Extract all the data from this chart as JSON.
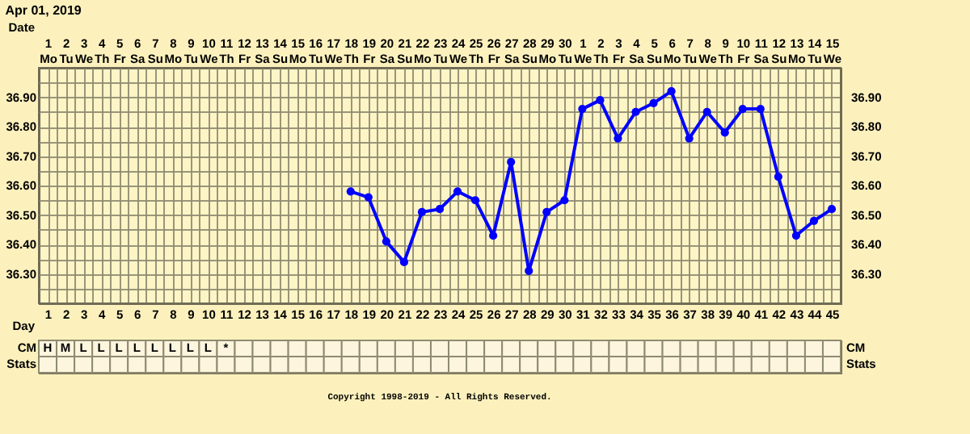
{
  "chart_data": [
    {
      "type": "line",
      "title": "Apr 01, 2019",
      "x2label": "Date",
      "xlabel": "Day",
      "x": [
        18,
        19,
        20,
        21,
        22,
        23,
        24,
        25,
        26,
        27,
        28,
        29,
        30,
        31,
        32,
        33,
        34,
        35,
        36,
        37,
        38,
        39,
        40,
        41,
        42,
        43,
        44,
        45
      ],
      "series": [
        {
          "color": "#0000ff",
          "values": [
            36.58,
            36.56,
            36.41,
            36.34,
            36.51,
            36.52,
            36.58,
            36.55,
            36.43,
            36.68,
            36.31,
            36.51,
            36.55,
            36.86,
            36.89,
            36.76,
            36.85,
            36.88,
            36.92,
            36.76,
            36.85,
            36.78,
            36.86,
            36.86,
            36.63,
            36.43,
            36.48,
            36.52
          ]
        }
      ],
      "marker": "circle",
      "line_style": "solid",
      "grid": true,
      "xlim": [
        0.5,
        45.5
      ],
      "xticks": [
        1,
        2,
        3,
        4,
        5,
        6,
        7,
        8,
        9,
        10,
        11,
        12,
        13,
        14,
        15,
        16,
        17,
        18,
        19,
        20,
        21,
        22,
        23,
        24,
        25,
        26,
        27,
        28,
        29,
        30,
        31,
        32,
        33,
        34,
        35,
        36,
        37,
        38,
        39,
        40,
        41,
        42,
        43,
        44,
        45,
        {
          "value": 1.5,
          "label": null
        },
        {
          "value": 2.5,
          "label": null
        },
        {
          "value": 3.5,
          "label": null
        },
        {
          "value": 4.5,
          "label": null
        },
        {
          "value": 5.5,
          "label": null
        },
        {
          "value": 6.5,
          "label": null
        },
        {
          "value": 7.5,
          "label": null
        },
        {
          "value": 8.5,
          "label": null
        },
        {
          "value": 9.5,
          "label": null
        },
        {
          "value": 10.5,
          "label": null
        },
        {
          "value": 11.5,
          "label": null
        },
        {
          "value": 12.5,
          "label": null
        },
        {
          "value": 13.5,
          "label": null
        },
        {
          "value": 14.5,
          "label": null
        },
        {
          "value": 15.5,
          "label": null
        },
        {
          "value": 16.5,
          "label": null
        },
        {
          "value": 17.5,
          "label": null
        },
        {
          "value": 18.5,
          "label": null
        },
        {
          "value": 19.5,
          "label": null
        },
        {
          "value": 20.5,
          "label": null
        },
        {
          "value": 21.5,
          "label": null
        },
        {
          "value": 22.5,
          "label": null
        },
        {
          "value": 23.5,
          "label": null
        },
        {
          "value": 24.5,
          "label": null
        },
        {
          "value": 25.5,
          "label": null
        },
        {
          "value": 26.5,
          "label": null
        },
        {
          "value": 27.5,
          "label": null
        },
        {
          "value": 28.5,
          "label": null
        },
        {
          "value": 29.5,
          "label": null
        },
        {
          "value": 30.5,
          "label": null
        },
        {
          "value": 31.5,
          "label": null
        },
        {
          "value": 32.5,
          "label": null
        },
        {
          "value": 33.5,
          "label": null
        },
        {
          "value": 34.5,
          "label": null
        },
        {
          "value": 35.5,
          "label": null
        },
        {
          "value": 36.5,
          "label": null
        },
        {
          "value": 37.5,
          "label": null
        },
        {
          "value": 38.5,
          "label": null
        },
        {
          "value": 39.5,
          "label": null
        },
        {
          "value": 40.5,
          "label": null
        },
        {
          "value": 41.5,
          "label": null
        },
        {
          "value": 42.5,
          "label": null
        },
        {
          "value": 43.5,
          "label": null
        },
        {
          "value": 44.5,
          "label": null
        }
      ],
      "x2lim": [
        "2019-03-31T12:00",
        "2019-05-15T12:00"
      ],
      "x2ticks": [
        {
          "value": "2019-04-01",
          "label": "1\nMo"
        },
        {
          "value": "2019-04-02",
          "label": "2\nTu"
        },
        {
          "value": "2019-04-03",
          "label": "3\nWe"
        },
        {
          "value": "2019-04-04",
          "label": "4\nTh"
        },
        {
          "value": "2019-04-05",
          "label": "5\nFr"
        },
        {
          "value": "2019-04-06",
          "label": "6\nSa"
        },
        {
          "value": "2019-04-07",
          "label": "7\nSu"
        },
        {
          "value": "2019-04-08",
          "label": "8\nMo"
        },
        {
          "value": "2019-04-09",
          "label": "9\nTu"
        },
        {
          "value": "2019-04-10",
          "label": "10\nWe"
        },
        {
          "value": "2019-04-11",
          "label": "11\nTh"
        },
        {
          "value": "2019-04-12",
          "label": "12\nFr"
        },
        {
          "value": "2019-04-13",
          "label": "13\nSa"
        },
        {
          "value": "2019-04-14",
          "label": "14\nSu"
        },
        {
          "value": "2019-04-15",
          "label": "15\nMo"
        },
        {
          "value": "2019-04-16",
          "label": "16\nTu"
        },
        {
          "value": "2019-04-17",
          "label": "17\nWe"
        },
        {
          "value": "2019-04-18",
          "label": "18\nTh"
        },
        {
          "value": "2019-04-19",
          "label": "19\nFr"
        },
        {
          "value": "2019-04-20",
          "label": "20\nSa"
        },
        {
          "value": "2019-04-21",
          "label": "21\nSu"
        },
        {
          "value": "2019-04-22",
          "label": "22\nMo"
        },
        {
          "value": "2019-04-23",
          "label": "23\nTu"
        },
        {
          "value": "2019-04-24",
          "label": "24\nWe"
        },
        {
          "value": "2019-04-25",
          "label": "25\nTh"
        },
        {
          "value": "2019-04-26",
          "label": "26\nFr"
        },
        {
          "value": "2019-04-27",
          "label": "27\nSa"
        },
        {
          "value": "2019-04-28",
          "label": "28\nSu"
        },
        {
          "value": "2019-04-29",
          "label": "29\nMo"
        },
        {
          "value": "2019-04-30",
          "label": "30\nTu"
        },
        {
          "value": "2019-05-01",
          "label": "1\nWe"
        },
        {
          "value": "2019-05-02",
          "label": "2\nTh"
        },
        {
          "value": "2019-05-03",
          "label": "3\nFr"
        },
        {
          "value": "2019-05-04",
          "label": "4\nSa"
        },
        {
          "value": "2019-05-05",
          "label": "5\nSu"
        },
        {
          "value": "2019-05-06",
          "label": "6\nMo"
        },
        {
          "value": "2019-05-07",
          "label": "7\nTu"
        },
        {
          "value": "2019-05-08",
          "label": "8\nWe"
        },
        {
          "value": "2019-05-09",
          "label": "9\nTh"
        },
        {
          "value": "2019-05-10",
          "label": "10\nFr"
        },
        {
          "value": "2019-05-11",
          "label": "11\nSa"
        },
        {
          "value": "2019-05-12",
          "label": "12\nSu"
        },
        {
          "value": "2019-05-13",
          "label": "13\nMo"
        },
        {
          "value": "2019-05-14",
          "label": "14\nTu"
        },
        {
          "value": "2019-05-15",
          "label": "15\nWe"
        }
      ],
      "ylim": [
        36.2,
        37.0
      ],
      "yticks": [
        {
          "value": 36.3,
          "label": "36.30"
        },
        {
          "value": 36.4,
          "label": "36.40"
        },
        {
          "value": 36.5,
          "label": "36.50"
        },
        {
          "value": 36.6,
          "label": "36.60"
        },
        {
          "value": 36.7,
          "label": "36.70"
        },
        {
          "value": 36.8,
          "label": "36.80"
        },
        {
          "value": 36.9,
          "label": "36.90"
        },
        {
          "value": 36.25,
          "label": null
        },
        {
          "value": 36.35,
          "label": null
        },
        {
          "value": 36.45,
          "label": null
        },
        {
          "value": 36.55,
          "label": null
        },
        {
          "value": 36.65,
          "label": null
        },
        {
          "value": 36.75,
          "label": null
        },
        {
          "value": 36.85,
          "label": null
        },
        {
          "value": 36.95,
          "label": null
        }
      ],
      "y2lim": [
        36.2,
        37.0
      ],
      "y2ticks": [
        {
          "value": 36.3,
          "label": "36.30"
        },
        {
          "value": 36.4,
          "label": "36.40"
        },
        {
          "value": 36.5,
          "label": "36.50"
        },
        {
          "value": 36.6,
          "label": "36.60"
        },
        {
          "value": 36.7,
          "label": "36.70"
        },
        {
          "value": 36.8,
          "label": "36.80"
        },
        {
          "value": 36.9,
          "label": "36.90"
        }
      ]
    },
    {
      "type": "heatmap",
      "tick_labels": "y",
      "annotations": [
        "Copyright 1998-2019 - All Rights Reserved."
      ],
      "categories": [
        null,
        null,
        null,
        null,
        null,
        null,
        null,
        null,
        null,
        null,
        null,
        null,
        null,
        null,
        null,
        null,
        null,
        null,
        null,
        null,
        null,
        null,
        null,
        null,
        null,
        null,
        null,
        null,
        null,
        null,
        null,
        null,
        null,
        null,
        null,
        null,
        null,
        null,
        null,
        null,
        null,
        null,
        null,
        null,
        null
      ],
      "y_categories": [
        "CM",
        "Stats"
      ],
      "y2_categories": [
        "CM",
        "Stats"
      ],
      "cells": [
        [
          null,
          null,
          null,
          null,
          null,
          null,
          null,
          null,
          null,
          null,
          null,
          null,
          null,
          null,
          null,
          null,
          null,
          null,
          null,
          null,
          null,
          null,
          null,
          null,
          null,
          null,
          null,
          null,
          null,
          null,
          null,
          null,
          null,
          null,
          null,
          null,
          null,
          null,
          null,
          null,
          null,
          null,
          null,
          null,
          null
        ],
        [
          null,
          null,
          null,
          null,
          null,
          null,
          null,
          null,
          null,
          null,
          null,
          null,
          null,
          null,
          null,
          null,
          null,
          null,
          null,
          null,
          null,
          null,
          null,
          null,
          null,
          null,
          null,
          null,
          null,
          null,
          null,
          null,
          null,
          null,
          null,
          null,
          null,
          null,
          null,
          null,
          null,
          null,
          null,
          null,
          null
        ]
      ],
      "cell_labels": [
        [
          "H",
          "M",
          "L",
          "L",
          "L",
          "L",
          "L",
          "L",
          "L",
          "L",
          "*",
          null,
          null,
          null,
          null,
          null,
          null,
          null,
          null,
          null,
          null,
          null,
          null,
          null,
          null,
          null,
          null,
          null,
          null,
          null,
          null,
          null,
          null,
          null,
          null,
          null,
          null,
          null,
          null,
          null,
          null,
          null,
          null,
          null,
          null
        ],
        [
          null,
          null,
          null,
          null,
          null,
          null,
          null,
          null,
          null,
          null,
          null,
          null,
          null,
          null,
          null,
          null,
          null,
          null,
          null,
          null,
          null,
          null,
          null,
          null,
          null,
          null,
          null,
          null,
          null,
          null,
          null,
          null,
          null,
          null,
          null,
          null,
          null,
          null,
          null,
          null,
          null,
          null,
          null,
          null,
          null
        ]
      ]
    }
  ]
}
